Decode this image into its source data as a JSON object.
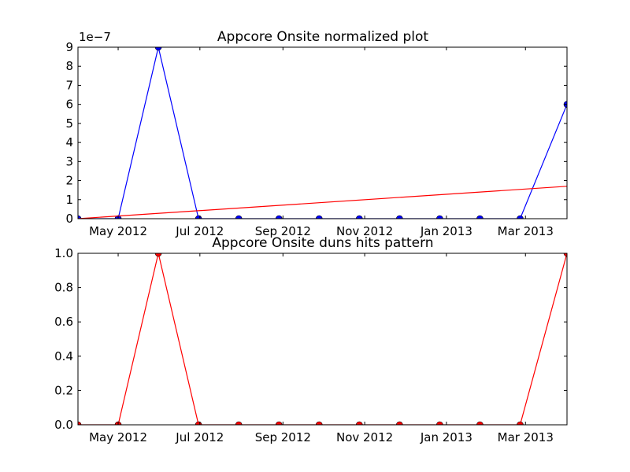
{
  "chart_data": [
    {
      "type": "line",
      "title": "Appcore Onsite normalized plot",
      "offset_label": "1e−7",
      "xlabel": "",
      "ylabel": "",
      "xlim": [
        "2012-04-01",
        "2013-04-01"
      ],
      "ylim": [
        0,
        9
      ],
      "yticks": [
        0,
        1,
        2,
        3,
        4,
        5,
        6,
        7,
        8,
        9
      ],
      "xticks": [
        {
          "date": "2012-05-01",
          "label": "May 2012"
        },
        {
          "date": "2012-07-01",
          "label": "Jul 2012"
        },
        {
          "date": "2012-09-01",
          "label": "Sep 2012"
        },
        {
          "date": "2012-11-01",
          "label": "Nov 2012"
        },
        {
          "date": "2013-01-01",
          "label": "Jan 2013"
        },
        {
          "date": "2013-03-01",
          "label": "Mar 2013"
        }
      ],
      "grid": false,
      "series": [
        {
          "color": "#0000ff",
          "marker": "circle",
          "x": [
            "2012-04-01",
            "2012-05-01",
            "2012-05-31",
            "2012-06-30",
            "2012-07-30",
            "2012-08-29",
            "2012-09-28",
            "2012-10-28",
            "2012-11-27",
            "2012-12-27",
            "2013-01-26",
            "2013-02-25",
            "2013-04-01"
          ],
          "y": [
            0,
            0,
            9,
            0,
            0,
            0,
            0,
            0,
            0,
            0,
            0,
            0,
            6
          ]
        },
        {
          "color": "#ff0000",
          "marker": "none",
          "x": [
            "2012-04-01",
            "2013-04-01"
          ],
          "y": [
            0,
            1.7
          ]
        }
      ]
    },
    {
      "type": "line",
      "title": "Appcore Onsite duns hits pattern",
      "xlabel": "",
      "ylabel": "",
      "xlim": [
        "2012-04-01",
        "2013-04-01"
      ],
      "ylim": [
        0,
        1
      ],
      "yticks": [
        0.0,
        0.2,
        0.4,
        0.6,
        0.8,
        1.0
      ],
      "ytick_labels": [
        "0.0",
        "0.2",
        "0.4",
        "0.6",
        "0.8",
        "1.0"
      ],
      "xticks": [
        {
          "date": "2012-05-01",
          "label": "May 2012"
        },
        {
          "date": "2012-07-01",
          "label": "Jul 2012"
        },
        {
          "date": "2012-09-01",
          "label": "Sep 2012"
        },
        {
          "date": "2012-11-01",
          "label": "Nov 2012"
        },
        {
          "date": "2013-01-01",
          "label": "Jan 2013"
        },
        {
          "date": "2013-03-01",
          "label": "Mar 2013"
        }
      ],
      "grid": false,
      "series": [
        {
          "color": "#ff0000",
          "marker": "circle",
          "x": [
            "2012-04-01",
            "2012-05-01",
            "2012-05-31",
            "2012-06-30",
            "2012-07-30",
            "2012-08-29",
            "2012-09-28",
            "2012-10-28",
            "2012-11-27",
            "2012-12-27",
            "2013-01-26",
            "2013-02-25",
            "2013-04-01"
          ],
          "y": [
            0,
            0,
            1,
            0,
            0,
            0,
            0,
            0,
            0,
            0,
            0,
            0,
            1
          ]
        }
      ]
    }
  ]
}
